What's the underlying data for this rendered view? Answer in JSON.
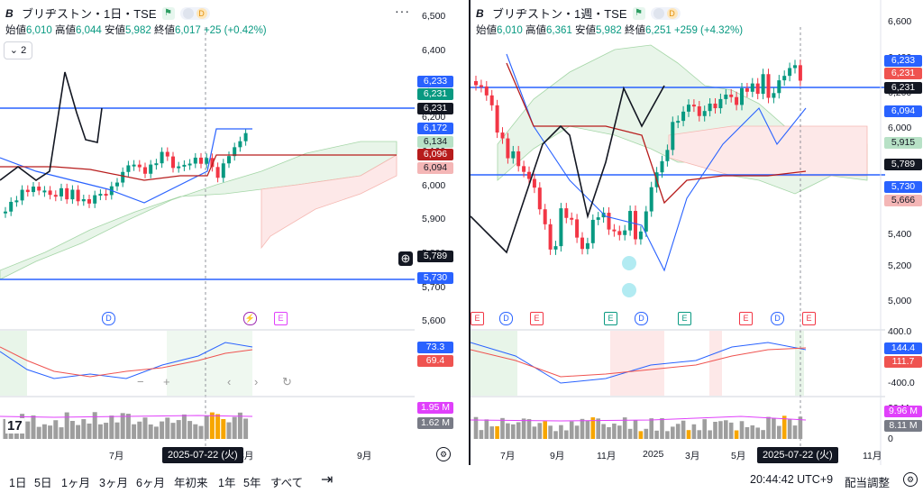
{
  "left": {
    "title": "ブリヂストン・1日・TSE",
    "ohlc": {
      "open_label": "始値",
      "open": "6,010",
      "high_label": "高値",
      "high": "6,044",
      "low_label": "安値",
      "low": "5,982",
      "close_label": "終値",
      "close": "6,017",
      "change": "+25 (+0.42%)"
    },
    "collapse_label": "2",
    "price_ticks": [
      "6,500",
      "6,400",
      "6,300",
      "6,200",
      "6,100",
      "6,000",
      "5,900",
      "5,800",
      "5,700",
      "5,600"
    ],
    "tags": [
      {
        "text": "6,233",
        "color": "#2962ff"
      },
      {
        "text": "6,231",
        "color": "#089981"
      },
      {
        "text": "6,231",
        "color": "#131722"
      },
      {
        "text": "6,172",
        "color": "#2962ff"
      },
      {
        "text": "6,134",
        "color": "#b7e1c6"
      },
      {
        "text": "6,096",
        "color": "#b71c1c"
      },
      {
        "text": "6,094",
        "color": "#f4b6b6"
      },
      {
        "text": "5,789",
        "color": "#131722"
      },
      {
        "text": "5,730",
        "color": "#2962ff"
      },
      {
        "text": "73.3",
        "color": "#2962ff"
      },
      {
        "text": "69.4",
        "color": "#ef5350"
      },
      {
        "text": "1.95 M",
        "color": "#e040fb"
      },
      {
        "text": "1.62 M",
        "color": "#787b86"
      }
    ],
    "x_ticks": [
      "7月",
      "8月",
      "9月"
    ],
    "date_label": "2025-07-22 (火)",
    "events": [
      "D",
      "E"
    ]
  },
  "right": {
    "title": "ブリヂストン・1週・TSE",
    "ohlc": {
      "open_label": "始値",
      "open": "6,010",
      "high_label": "高値",
      "high": "6,361",
      "low_label": "安値",
      "low": "5,982",
      "close_label": "終値",
      "close": "6,251",
      "change": "+259 (+4.32%)"
    },
    "price_ticks": [
      "6,600",
      "6,400",
      "6,200",
      "6,000",
      "5,800",
      "5,600",
      "5,400",
      "5,200",
      "5,000"
    ],
    "osc_ticks": [
      "400.0",
      "-400.0"
    ],
    "vol_ticks": [
      "20 M",
      "0"
    ],
    "tags": [
      {
        "text": "6,233",
        "color": "#2962ff"
      },
      {
        "text": "6,231",
        "color": "#ef5350"
      },
      {
        "text": "6,231",
        "color": "#131722"
      },
      {
        "text": "6,094",
        "color": "#2962ff"
      },
      {
        "text": "5,915",
        "color": "#b7e1c6"
      },
      {
        "text": "5,789",
        "color": "#131722"
      },
      {
        "text": "5,730",
        "color": "#2962ff"
      },
      {
        "text": "5,666",
        "color": "#f4b6b6"
      },
      {
        "text": "144.4",
        "color": "#2962ff"
      },
      {
        "text": "111.7",
        "color": "#ef5350"
      },
      {
        "text": "9.96 M",
        "color": "#e040fb"
      },
      {
        "text": "8.11 M",
        "color": "#787b86"
      }
    ],
    "x_ticks": [
      "7月",
      "9月",
      "11月",
      "2025",
      "3月",
      "5月",
      "11月"
    ],
    "date_label": "2025-07-22 (火)",
    "events": [
      "E",
      "D",
      "E",
      "E",
      "D",
      "E",
      "E",
      "D",
      "E"
    ]
  },
  "bottom_bar": {
    "ranges": [
      "1日",
      "5日",
      "1ヶ月",
      "3ヶ月",
      "6ヶ月",
      "年初来",
      "1年",
      "5年",
      "すべて"
    ],
    "clock": "20:44:42 UTC+9",
    "adjust": "配当調整"
  },
  "icons": [
    "symbol-logo-icon",
    "flag-icon",
    "more-icon",
    "crosshair-plus-icon",
    "compare-icon",
    "settings-icon",
    "tv-logo-icon"
  ]
}
